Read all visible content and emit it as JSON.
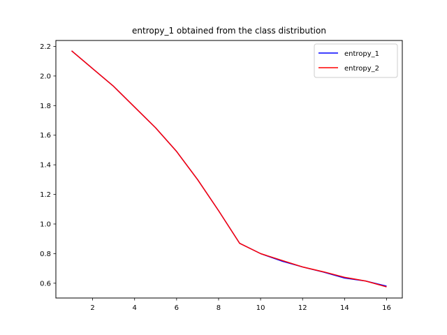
{
  "chart_data": {
    "type": "line",
    "title": "entropy_1 obtained from the class distribution",
    "xlabel": "",
    "ylabel": "",
    "x": [
      1,
      2,
      3,
      4,
      5,
      6,
      7,
      8,
      9,
      10,
      11,
      12,
      13,
      14,
      15,
      16
    ],
    "series": [
      {
        "name": "entropy_1",
        "color": "#0000ff",
        "values": [
          2.17,
          2.05,
          1.93,
          1.79,
          1.65,
          1.49,
          1.3,
          1.09,
          0.87,
          0.8,
          0.75,
          0.71,
          0.675,
          0.635,
          0.615,
          0.58
        ]
      },
      {
        "name": "entropy_2",
        "color": "#ff0000",
        "values": [
          2.17,
          2.05,
          1.93,
          1.79,
          1.65,
          1.49,
          1.3,
          1.09,
          0.87,
          0.8,
          0.755,
          0.71,
          0.677,
          0.64,
          0.615,
          0.575
        ]
      }
    ],
    "xlim": [
      0.25,
      16.75
    ],
    "ylim": [
      0.5,
      2.24
    ],
    "xticks": [
      2,
      4,
      6,
      8,
      10,
      12,
      14,
      16
    ],
    "yticks": [
      0.6,
      0.8,
      1.0,
      1.2,
      1.4,
      1.6,
      1.8,
      2.0,
      2.2
    ],
    "xtick_labels": [
      "2",
      "4",
      "6",
      "8",
      "10",
      "12",
      "14",
      "16"
    ],
    "ytick_labels": [
      "0.6",
      "0.8",
      "1.0",
      "1.2",
      "1.4",
      "1.6",
      "1.8",
      "2.0",
      "2.2"
    ],
    "grid": false,
    "legend_position": "top-right"
  }
}
